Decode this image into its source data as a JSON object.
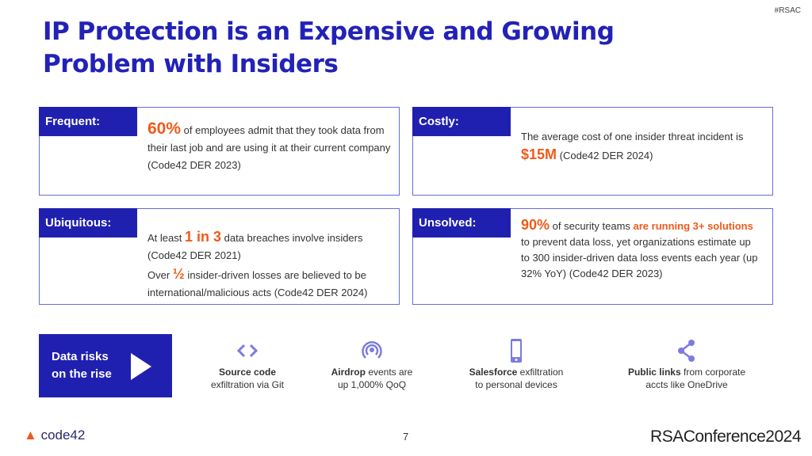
{
  "tag": "#RSAC",
  "title_line1": "IP Protection is an Expensive and Growing",
  "title_line2": "Problem with Insiders",
  "cards": [
    {
      "label": "Frequent:",
      "stat": "60%",
      "text1": " of employees admit that they took data from their last job and are using it at their current company (Code42 DER 2023)"
    },
    {
      "label": "Costly:",
      "pre": "The average cost of one insider threat incident is ",
      "stat": "$15M",
      "post": " (Code42 DER 2024)"
    },
    {
      "label": "Ubiquitous:",
      "pre": "At least ",
      "stat": "1 in 3",
      "post": " data breaches involve insiders (Code42 DER 2021)",
      "pre2": "Over ",
      "stat2": "½",
      "post2": " insider-driven losses are believed to be international/malicious acts (Code42 DER 2024)"
    },
    {
      "label": "Unsolved:",
      "stat": "90%",
      "mid": " of security teams ",
      "hl": "are running 3+ solutions",
      "post": " to prevent data loss, yet organizations estimate up to 300 insider-driven data loss events each year (up 32% YoY) (Code42 DER 2023)"
    }
  ],
  "risk_box": {
    "line1": "Data risks",
    "line2": "on the rise"
  },
  "risks": [
    {
      "icon": "code-icon",
      "bold": "Source code",
      "rest": "",
      "line2": "exfiltration via Git"
    },
    {
      "icon": "airdrop-icon",
      "bold": "Airdrop",
      "rest": " events are",
      "line2": "up 1,000% QoQ"
    },
    {
      "icon": "phone-icon",
      "bold": "Salesforce",
      "rest": " exfiltration",
      "line2": "to personal devices"
    },
    {
      "icon": "share-icon",
      "bold": "Public links",
      "rest": " from corporate",
      "line2": "accts like OneDrive"
    }
  ],
  "footer": {
    "logo": "code42",
    "page": "7",
    "conference": "RSAConference2024"
  },
  "colors": {
    "brand_blue": "#2020b0",
    "accent_orange": "#f05a1a",
    "icon_purple": "#7b7be0"
  }
}
